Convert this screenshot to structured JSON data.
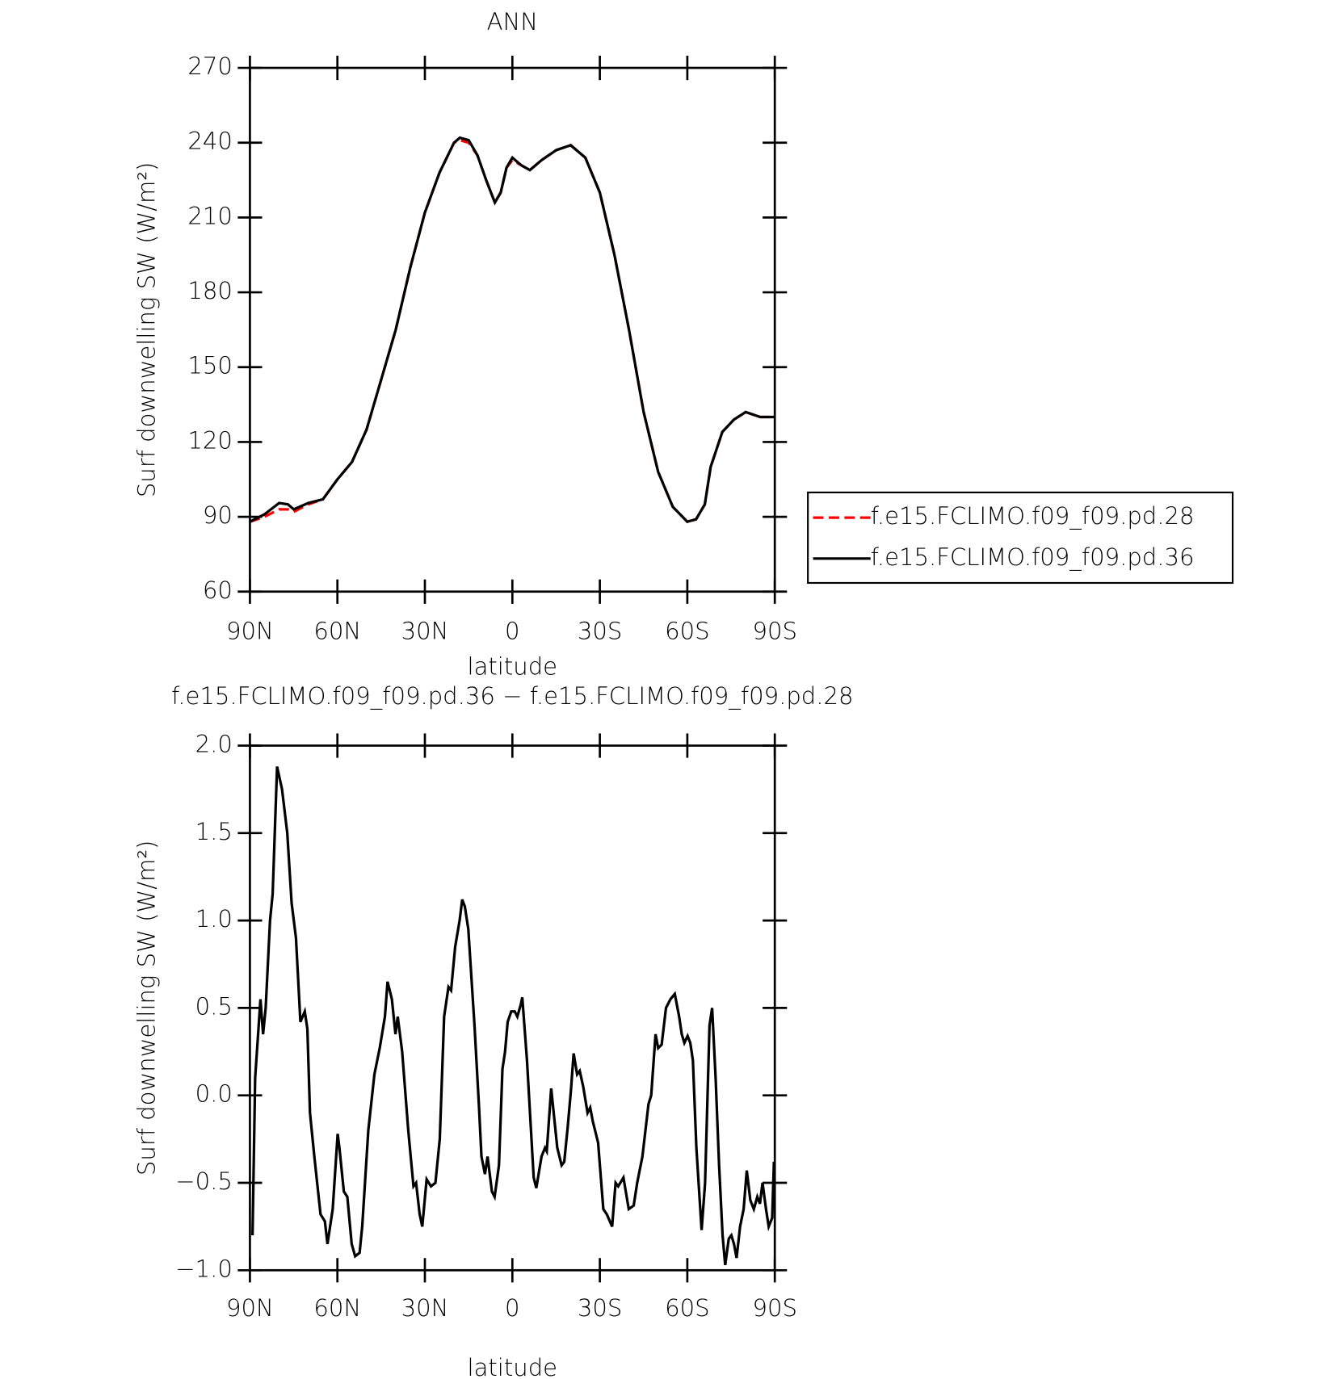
{
  "chart_data": [
    {
      "type": "line",
      "title": "ANN",
      "xlabel": "latitude",
      "ylabel": "Surf downwelling SW (W/m²)",
      "x": [
        90,
        85,
        80,
        77,
        75,
        70,
        65,
        60,
        55,
        50,
        45,
        40,
        35,
        30,
        25,
        20,
        18,
        15,
        12,
        9,
        6,
        4,
        2,
        0,
        -3,
        -6,
        -10,
        -15,
        -20,
        -25,
        -30,
        -35,
        -40,
        -45,
        -50,
        -55,
        -60,
        -63,
        -66,
        -68,
        -72,
        -76,
        -80,
        -85,
        -90
      ],
      "series": [
        {
          "name": "f.e15.FCLIMO.f09_f09.pd.28",
          "color": "#ff0000",
          "dash": true,
          "values": [
            88,
            90,
            93,
            93,
            92,
            95,
            97,
            105,
            112,
            125,
            145,
            165,
            190,
            212,
            228,
            240,
            241,
            240,
            235,
            225,
            216,
            220,
            230,
            233,
            231,
            229,
            233,
            237,
            239,
            234,
            220,
            195,
            165,
            132,
            108,
            94,
            88,
            89,
            95,
            110,
            124,
            129,
            132,
            130,
            130
          ]
        },
        {
          "name": "f.e15.FCLIMO.f09_f09.pd.36",
          "color": "#000000",
          "dash": false,
          "values": [
            88,
            91,
            95.5,
            95,
            93,
            95.5,
            97,
            105,
            112,
            125,
            145,
            165,
            190,
            212,
            228,
            240,
            242,
            241,
            235,
            225,
            216,
            220,
            230,
            234,
            231,
            229,
            233,
            237,
            239,
            234,
            220,
            195,
            165,
            132,
            108,
            94,
            88,
            89,
            95,
            110,
            124,
            129,
            132,
            130,
            130
          ]
        }
      ],
      "xlim": [
        90,
        -90
      ],
      "xticks": [
        {
          "value": 90,
          "label": "90N"
        },
        {
          "value": 60,
          "label": "60N"
        },
        {
          "value": 30,
          "label": "30N"
        },
        0,
        {
          "value": -30,
          "label": "30S"
        },
        {
          "value": -60,
          "label": "60S"
        },
        {
          "value": -90,
          "label": "90S"
        }
      ],
      "ylim": [
        60,
        270
      ],
      "yticks": [
        60,
        90,
        120,
        150,
        180,
        210,
        240,
        270
      ],
      "legend": "right"
    },
    {
      "type": "line",
      "title": "f.e15.FCLIMO.f09_f09.pd.36 − f.e15.FCLIMO.f09_f09.pd.28",
      "xlabel": "latitude",
      "ylabel": "Surf downwelling SW (W/m²)",
      "x": [
        89.1,
        88.2,
        86.4,
        85.5,
        84.6,
        83.1,
        82.2,
        80.7,
        79,
        77.2,
        75.7,
        74.2,
        72.7,
        71.2,
        70.3,
        69.4,
        67.9,
        65.8,
        64.3,
        63.4,
        61.6,
        59.9,
        59.3,
        57.8,
        56.6,
        55.1,
        53.9,
        52.4,
        51.5,
        49.4,
        47.3,
        45.5,
        43.7,
        42.8,
        41.3,
        40.1,
        39.3,
        37.8,
        35.7,
        33.9,
        33,
        31.8,
        30.9,
        29.4,
        27.9,
        26.4,
        24.9,
        23.4,
        21.9,
        21,
        19.6,
        18.1,
        17.2,
        16.3,
        15.1,
        13,
        11.5,
        10.6,
        9.4,
        8.5,
        7,
        6.1,
        4.6,
        3.4,
        2.5,
        1.6,
        0.4,
        -0.8,
        -1.7,
        -2.9,
        -3.4,
        -5,
        -7.3,
        -8.2,
        -10,
        -11.2,
        -11.8,
        -13.3,
        -15.4,
        -16.9,
        -17.8,
        -19,
        -20.1,
        -21,
        -22.2,
        -23.1,
        -24.3,
        -25.8,
        -26.7,
        -27.6,
        -29.4,
        -31.2,
        -32.4,
        -34.2,
        -35.4,
        -36.3,
        -38.1,
        -39.9,
        -41.6,
        -42.8,
        -44.6,
        -46.7,
        -47.6,
        -49.1,
        -50,
        -51.2,
        -52.7,
        -54.2,
        -55.7,
        -57.2,
        -58.1,
        -59,
        -60.1,
        -61,
        -61.9,
        -63.1,
        -64.9,
        -66.1,
        -67.6,
        -68.5,
        -69.7,
        -70.9,
        -72.1,
        -73,
        -74.2,
        -75.1,
        -76,
        -76.9,
        -78.1,
        -79.3,
        -80.4,
        -81.6,
        -82.8,
        -84,
        -84.9,
        -85.8,
        -87,
        -87.9,
        -89.1,
        -89.7
      ],
      "values": [
        -0.8,
        0.1,
        0.55,
        0.35,
        0.5,
        1.0,
        1.15,
        1.88,
        1.75,
        1.5,
        1.1,
        0.9,
        0.42,
        0.48,
        0.38,
        -0.1,
        -0.35,
        -0.68,
        -0.72,
        -0.85,
        -0.65,
        -0.22,
        -0.3,
        -0.55,
        -0.58,
        -0.85,
        -0.92,
        -0.9,
        -0.75,
        -0.2,
        0.12,
        0.27,
        0.45,
        0.65,
        0.55,
        0.35,
        0.45,
        0.25,
        -0.2,
        -0.52,
        -0.5,
        -0.68,
        -0.75,
        -0.48,
        -0.52,
        -0.5,
        -0.25,
        0.45,
        0.62,
        0.6,
        0.85,
        1.0,
        1.12,
        1.08,
        0.95,
        0.4,
        -0.05,
        -0.35,
        -0.45,
        -0.35,
        -0.55,
        -0.58,
        -0.4,
        0.15,
        0.25,
        0.42,
        0.48,
        0.48,
        0.45,
        0.52,
        0.56,
        0.2,
        -0.47,
        -0.53,
        -0.35,
        -0.3,
        -0.32,
        0.04,
        -0.3,
        -0.4,
        -0.38,
        -0.18,
        0.03,
        0.24,
        0.12,
        0.14,
        0.05,
        -0.1,
        -0.07,
        -0.15,
        -0.27,
        -0.65,
        -0.68,
        -0.75,
        -0.5,
        -0.52,
        -0.47,
        -0.65,
        -0.63,
        -0.5,
        -0.35,
        -0.05,
        0,
        0.35,
        0.27,
        0.29,
        0.5,
        0.55,
        0.58,
        0.45,
        0.35,
        0.3,
        0.34,
        0.3,
        0.2,
        -0.3,
        -0.77,
        -0.5,
        0.4,
        0.5,
        0.1,
        -0.4,
        -0.8,
        -0.97,
        -0.82,
        -0.8,
        -0.85,
        -0.93,
        -0.75,
        -0.65,
        -0.43,
        -0.6,
        -0.65,
        -0.58,
        -0.62,
        -0.5,
        -0.65,
        -0.75,
        -0.7,
        -0.38
      ],
      "color": "#000000",
      "xlim": [
        90,
        -90
      ],
      "xticks": [
        {
          "value": 90,
          "label": "90N"
        },
        {
          "value": 60,
          "label": "60N"
        },
        {
          "value": 30,
          "label": "30N"
        },
        0,
        {
          "value": -30,
          "label": "30S"
        },
        {
          "value": -60,
          "label": "60S"
        },
        {
          "value": -90,
          "label": "90S"
        }
      ],
      "ylim": [
        -1,
        2
      ],
      "yticks": [
        {
          "value": -1,
          "label": "−1.0"
        },
        {
          "value": -0.5,
          "label": "−0.5"
        },
        {
          "value": 0,
          "label": "0.0"
        },
        {
          "value": 0.5,
          "label": "0.5"
        },
        {
          "value": 1,
          "label": "1.0"
        },
        {
          "value": 1.5,
          "label": "1.5"
        },
        {
          "value": 2,
          "label": "2.0"
        }
      ]
    }
  ]
}
